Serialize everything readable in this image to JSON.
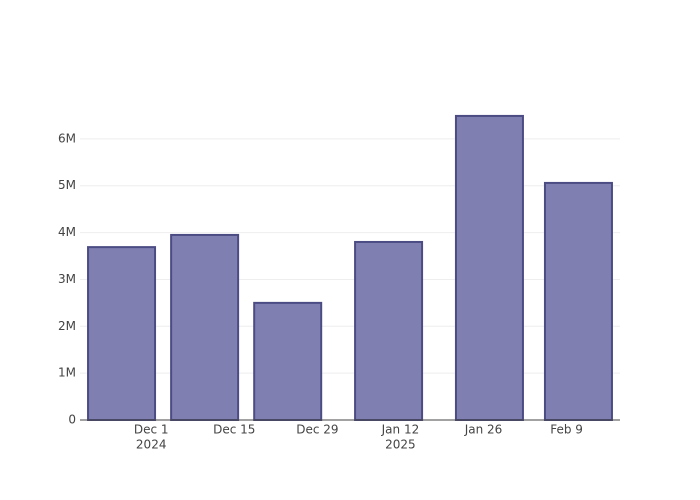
{
  "chart_data": {
    "type": "bar",
    "x": [
      "2024-11-26",
      "2024-12-10",
      "2024-12-24",
      "2025-01-10",
      "2025-01-27",
      "2025-02-11"
    ],
    "values": [
      3690000,
      3950000,
      2500000,
      3800000,
      6490000,
      5060000
    ],
    "color": "#7f7fb1",
    "line_color": "#4c4c84",
    "xlim": [
      "2024-11-19",
      "2025-02-18"
    ],
    "xticks": [
      {
        "value": "2024-12-01",
        "label": "Dec 1",
        "year": "2024"
      },
      {
        "value": "2024-12-15",
        "label": "Dec 15"
      },
      {
        "value": "2024-12-29",
        "label": "Dec 29"
      },
      {
        "value": "2025-01-12",
        "label": "Jan 12",
        "year": "2025"
      },
      {
        "value": "2025-01-26",
        "label": "Jan 26"
      },
      {
        "value": "2025-02-09",
        "label": "Feb 9"
      }
    ],
    "ylim": [
      0,
      6830000
    ],
    "yticks": [
      0,
      {
        "value": 1000000,
        "label": "1M"
      },
      {
        "value": 2000000,
        "label": "2M"
      },
      {
        "value": 3000000,
        "label": "3M"
      },
      {
        "value": 4000000,
        "label": "4M"
      },
      {
        "value": 5000000,
        "label": "5M"
      },
      {
        "value": 6000000,
        "label": "6M"
      }
    ],
    "grid": true
  }
}
